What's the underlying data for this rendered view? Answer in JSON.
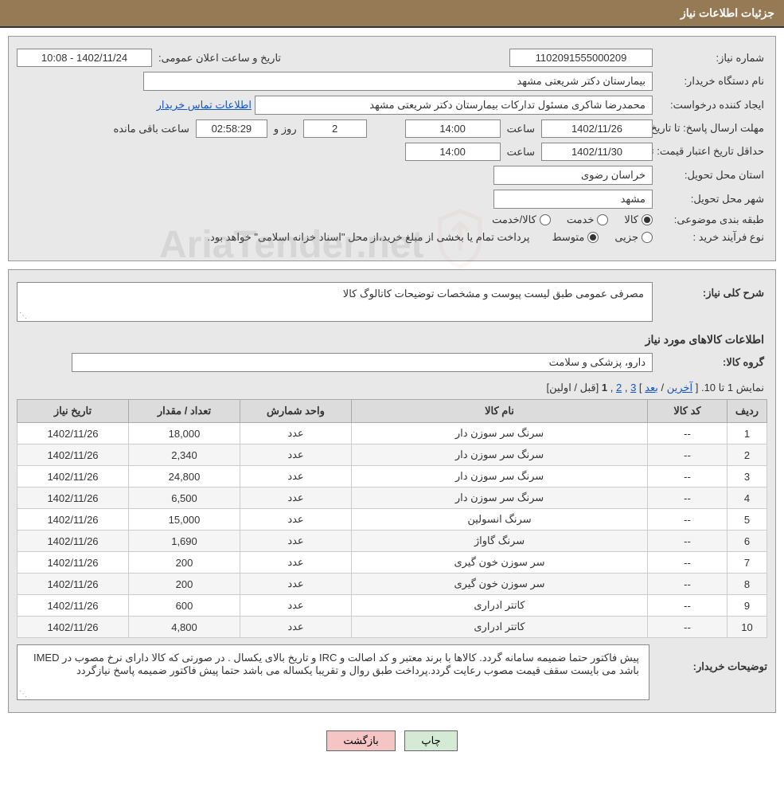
{
  "header": {
    "title": "جزئیات اطلاعات نیاز"
  },
  "form": {
    "need_number_label": "شماره نیاز:",
    "need_number": "1102091555000209",
    "announce_label": "تاریخ و ساعت اعلان عمومی:",
    "announce_value": "1402/11/24 - 10:08",
    "buyer_org_label": "نام دستگاه خریدار:",
    "buyer_org": "بیمارستان دکتر شریعتی مشهد",
    "requester_label": "ایجاد کننده درخواست:",
    "requester": "محمدرضا شاکری مسئول تدارکات بیمارستان دکتر شریعتی مشهد",
    "contact_link": "اطلاعات تماس خریدار",
    "deadline_label": "مهلت ارسال پاسخ:",
    "deadline_date_label": "تا تاریخ:",
    "deadline_date": "1402/11/26",
    "time_label": "ساعت",
    "deadline_time": "14:00",
    "days_and_label": "روز و",
    "days_remaining": "2",
    "countdown": "02:58:29",
    "remaining_label": "ساعت باقی مانده",
    "validity_label": "حداقل تاریخ اعتبار قیمت:",
    "validity_date_label": "تا تاریخ:",
    "validity_date": "1402/11/30",
    "validity_time": "14:00",
    "province_label": "استان محل تحویل:",
    "province": "خراسان رضوی",
    "city_label": "شهر محل تحویل:",
    "city": "مشهد",
    "category_label": "طبقه بندی موضوعی:",
    "cat_goods": "کالا",
    "cat_service": "خدمت",
    "cat_goods_service": "کالا/خدمت",
    "purchase_type_label": "نوع فرآیند خرید :",
    "type_partial": "جزیی",
    "type_medium": "متوسط",
    "purchase_note": "پرداخت تمام یا بخشی از مبلغ خرید،از محل \"اسناد خزانه اسلامی\" خواهد بود."
  },
  "need_desc": {
    "label": "شرح کلی نیاز:",
    "text": "مصرفی عمومی طبق لیست پیوست و مشخصات توضیحات کاتالوگ کالا"
  },
  "goods_section": {
    "heading": "اطلاعات کالاهای مورد نیاز",
    "group_label": "گروه کالا:",
    "group_value": "دارو، پزشکی و سلامت"
  },
  "pagination": {
    "prefix": "نمایش 1 تا 10.",
    "last": "آخرین",
    "next": "بعد",
    "bracket_open": "[ ",
    "page3": "3",
    "page2": "2",
    "page1": "1",
    "sep": ", ",
    "bracket_close": " ]",
    "prev_first": " [قبل / اولین]"
  },
  "table": {
    "headers": {
      "row": "ردیف",
      "code": "کد کالا",
      "name": "نام کالا",
      "unit": "واحد شمارش",
      "qty": "تعداد / مقدار",
      "date": "تاریخ نیاز"
    },
    "rows": [
      {
        "n": "1",
        "code": "--",
        "name": "سرنگ سر سوزن دار",
        "unit": "عدد",
        "qty": "18,000",
        "date": "1402/11/26"
      },
      {
        "n": "2",
        "code": "--",
        "name": "سرنگ سر سوزن دار",
        "unit": "عدد",
        "qty": "2,340",
        "date": "1402/11/26"
      },
      {
        "n": "3",
        "code": "--",
        "name": "سرنگ سر سوزن دار",
        "unit": "عدد",
        "qty": "24,800",
        "date": "1402/11/26"
      },
      {
        "n": "4",
        "code": "--",
        "name": "سرنگ سر سوزن دار",
        "unit": "عدد",
        "qty": "6,500",
        "date": "1402/11/26"
      },
      {
        "n": "5",
        "code": "--",
        "name": "سرنگ انسولین",
        "unit": "عدد",
        "qty": "15,000",
        "date": "1402/11/26"
      },
      {
        "n": "6",
        "code": "--",
        "name": "سرنگ گاواژ",
        "unit": "عدد",
        "qty": "1,690",
        "date": "1402/11/26"
      },
      {
        "n": "7",
        "code": "--",
        "name": "سر سوزن خون گیری",
        "unit": "عدد",
        "qty": "200",
        "date": "1402/11/26"
      },
      {
        "n": "8",
        "code": "--",
        "name": "سر سوزن خون گیری",
        "unit": "عدد",
        "qty": "200",
        "date": "1402/11/26"
      },
      {
        "n": "9",
        "code": "--",
        "name": "کاتتر ادراری",
        "unit": "عدد",
        "qty": "600",
        "date": "1402/11/26"
      },
      {
        "n": "10",
        "code": "--",
        "name": "کاتتر ادراری",
        "unit": "عدد",
        "qty": "4,800",
        "date": "1402/11/26"
      }
    ],
    "col_widths": {
      "row": "50px",
      "code": "100px",
      "name": "auto",
      "unit": "140px",
      "qty": "140px",
      "date": "140px"
    }
  },
  "buyer_desc": {
    "label": "توضیحات خریدار:",
    "text": "پیش فاکتور حتما ضمیمه سامانه گردد. کالاها با برند معتبر و کد اصالت و IRC و تاریخ بالای یکسال . در صورتی که کالا دارای نرخ مصوب در  IMED باشد می بایست سقف قیمت مصوب رعایت گردد.پرداخت طبق روال و تقریبا یکساله می باشد حتما پیش فاکتور ضمیمه پاسخ نیازگردد"
  },
  "buttons": {
    "print": "چاپ",
    "back": "بازگشت"
  },
  "watermark": {
    "text": "AriaTender.net"
  },
  "colors": {
    "header_bg": "#967a56",
    "panel_bg": "#e8e8e8",
    "link": "#1155cc",
    "btn_print_bg": "#d4ead4",
    "btn_back_bg": "#f5c4c4"
  }
}
